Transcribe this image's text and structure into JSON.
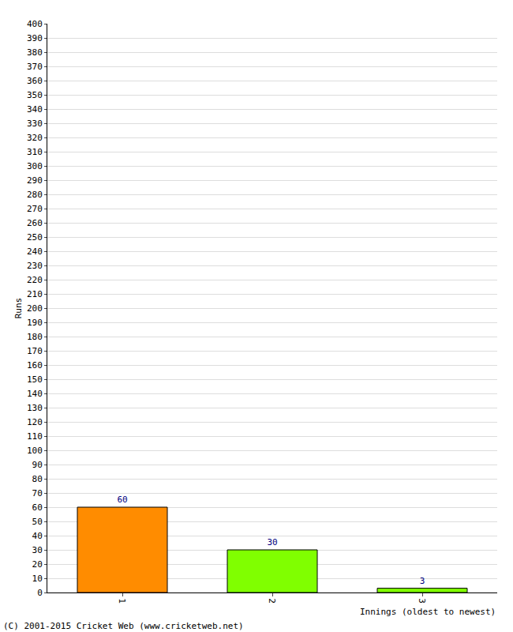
{
  "chart_data": {
    "type": "bar",
    "categories": [
      "1",
      "2",
      "3"
    ],
    "values": [
      60,
      30,
      3
    ],
    "colors": [
      "#ff8c00",
      "#80ff00",
      "#80ff00"
    ],
    "y_label": "Runs",
    "x_label": "Innings (oldest to newest)",
    "annotations": [
      "(C) 2001-2015 Cricket Web (www.cricketweb.net)"
    ],
    "ylim": [
      0,
      400
    ],
    "yticks": [
      0,
      10,
      20,
      30,
      40,
      50,
      60,
      70,
      80,
      90,
      100,
      110,
      120,
      130,
      140,
      150,
      160,
      170,
      180,
      190,
      200,
      210,
      220,
      230,
      240,
      250,
      260,
      270,
      280,
      290,
      300,
      310,
      320,
      330,
      340,
      350,
      360,
      370,
      380,
      390,
      400
    ],
    "grid": true,
    "data_labels": true
  }
}
